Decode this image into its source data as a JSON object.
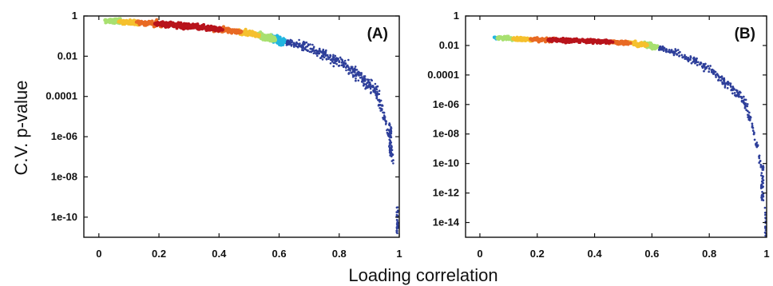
{
  "figure": {
    "xlabel": "Loading correlation",
    "ylabel": "C.V. p-value"
  },
  "colors": {
    "density_low": "#2e3f9a",
    "density_mid": "#22b6e0",
    "density_mid2": "#a8e070",
    "density_high1": "#f5c02e",
    "density_high2": "#e86a24",
    "density_peak": "#b8141c",
    "axis": "#111111"
  },
  "chart_data": [
    {
      "type": "scatter",
      "panel_label": "(A)",
      "xlim": [
        -0.05,
        1.0
      ],
      "ylim_log10": [
        -11,
        0
      ],
      "y_scale": "log",
      "x_ticks": [
        "0",
        "0.2",
        "0.4",
        "0.6",
        "0.8",
        "1"
      ],
      "y_ticks": [
        "1",
        "0.01",
        "0.0001",
        "1e-06",
        "1e-08",
        "1e-10"
      ],
      "legend": "none",
      "grid": false,
      "coloring": "point density (blue = sparse, red = dense)",
      "trend": [
        {
          "x": 0.02,
          "log10_p": -0.25
        },
        {
          "x": 0.1,
          "log10_p": -0.3
        },
        {
          "x": 0.2,
          "log10_p": -0.4
        },
        {
          "x": 0.3,
          "log10_p": -0.5
        },
        {
          "x": 0.4,
          "log10_p": -0.65
        },
        {
          "x": 0.5,
          "log10_p": -0.85
        },
        {
          "x": 0.6,
          "log10_p": -1.2
        },
        {
          "x": 0.7,
          "log10_p": -1.6
        },
        {
          "x": 0.8,
          "log10_p": -2.3
        },
        {
          "x": 0.85,
          "log10_p": -2.8
        },
        {
          "x": 0.9,
          "log10_p": -3.4
        },
        {
          "x": 0.93,
          "log10_p": -4.0
        },
        {
          "x": 0.95,
          "log10_p": -5.0
        },
        {
          "x": 0.97,
          "log10_p": -6.0
        },
        {
          "x": 0.985,
          "log10_p": -8.0
        },
        {
          "x": 1.0,
          "log10_p": -10.0
        }
      ],
      "clusters": [
        {
          "x": 0.97,
          "log10_p_range": [
            -7.0,
            -5.3
          ]
        },
        {
          "x": 0.995,
          "log10_p_range": [
            -11.0,
            -9.5
          ]
        }
      ]
    },
    {
      "type": "scatter",
      "panel_label": "(B)",
      "xlim": [
        -0.05,
        1.0
      ],
      "ylim_log10": [
        -15,
        0
      ],
      "y_scale": "log",
      "x_ticks": [
        "0",
        "0.2",
        "0.4",
        "0.6",
        "0.8",
        "1"
      ],
      "y_ticks": [
        "1",
        "0.01",
        "0.0001",
        "1e-06",
        "1e-08",
        "1e-10",
        "1e-12",
        "1e-14"
      ],
      "legend": "none",
      "grid": false,
      "coloring": "point density (blue = sparse, red = dense)",
      "trend": [
        {
          "x": 0.05,
          "log10_p": -1.5
        },
        {
          "x": 0.2,
          "log10_p": -1.6
        },
        {
          "x": 0.3,
          "log10_p": -1.65
        },
        {
          "x": 0.4,
          "log10_p": -1.7
        },
        {
          "x": 0.5,
          "log10_p": -1.8
        },
        {
          "x": 0.6,
          "log10_p": -2.0
        },
        {
          "x": 0.7,
          "log10_p": -2.6
        },
        {
          "x": 0.8,
          "log10_p": -3.6
        },
        {
          "x": 0.85,
          "log10_p": -4.4
        },
        {
          "x": 0.9,
          "log10_p": -5.3
        },
        {
          "x": 0.93,
          "log10_p": -6.2
        },
        {
          "x": 0.95,
          "log10_p": -7.5
        },
        {
          "x": 0.97,
          "log10_p": -9.0
        },
        {
          "x": 0.99,
          "log10_p": -11.5
        },
        {
          "x": 1.0,
          "log10_p": -14.0
        }
      ],
      "clusters": [
        {
          "x": 0.985,
          "log10_p_range": [
            -12.5,
            -10.0
          ]
        },
        {
          "x": 0.998,
          "log10_p_range": [
            -15.0,
            -12.8
          ]
        }
      ]
    }
  ]
}
